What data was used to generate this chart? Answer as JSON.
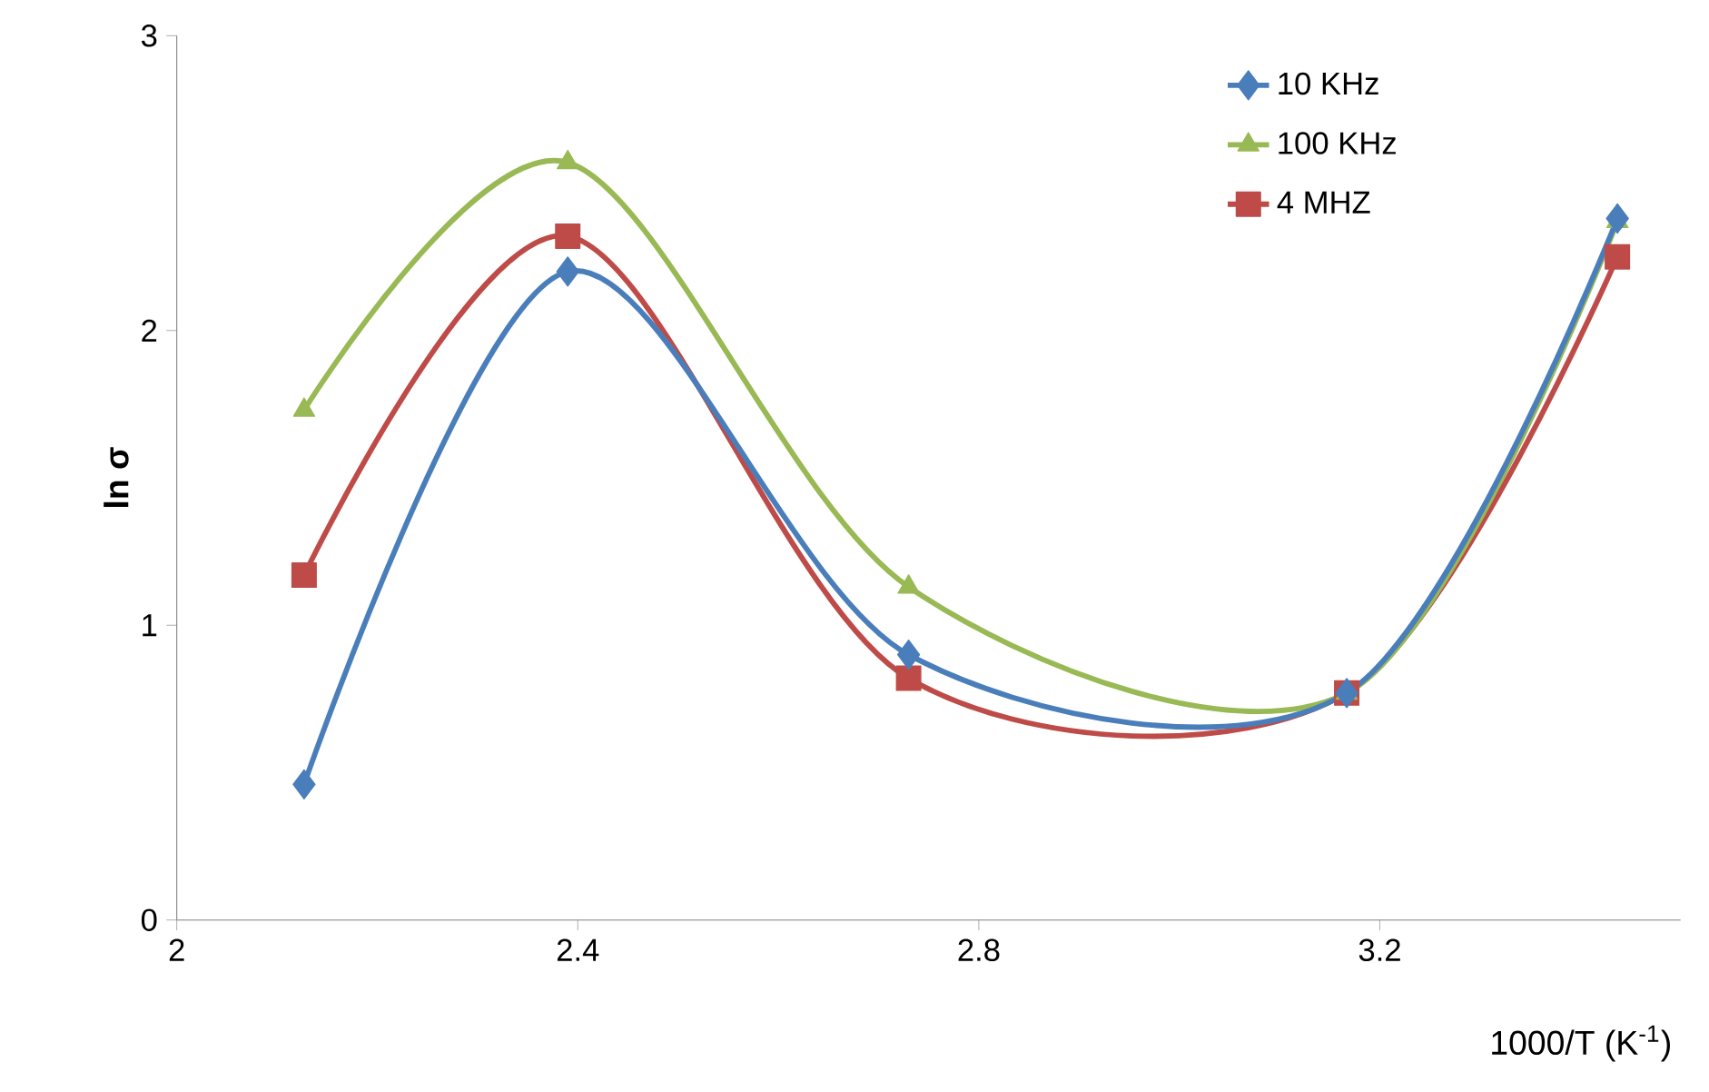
{
  "chart_data": {
    "type": "line",
    "xlabel": "1000/T (K$^{-1}$)",
    "ylabel": "ln σ",
    "x": [
      2.127,
      2.39,
      2.73,
      3.167,
      3.437
    ],
    "series": [
      {
        "name": "10 KHz",
        "color": "#4a7ebb",
        "marker": "diamond",
        "values": [
          0.46,
          2.2,
          0.9,
          0.77,
          2.38
        ]
      },
      {
        "name": "100 KHz",
        "color": "#98b954",
        "marker": "triangle",
        "values": [
          1.73,
          2.57,
          1.13,
          0.77,
          2.37
        ]
      },
      {
        "name": "4 MHZ",
        "color": "#be4b48",
        "marker": "square",
        "values": [
          1.17,
          2.32,
          0.82,
          0.77,
          2.25
        ]
      }
    ],
    "xlim": [
      2,
      3.5
    ],
    "ylim": [
      0,
      3
    ],
    "xticks": [
      2,
      2.4,
      2.8,
      3.2
    ],
    "yticks": [
      0,
      1,
      2,
      3
    ],
    "grid": false,
    "legend": "top right",
    "line_style": "solid"
  }
}
